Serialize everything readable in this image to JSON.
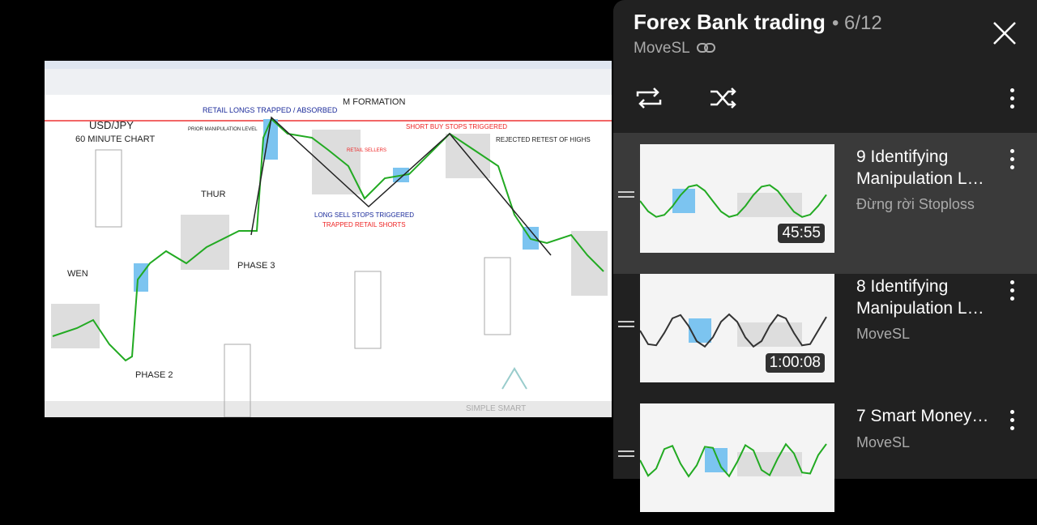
{
  "video": {
    "annotations": [
      "USD/JPY",
      "60 MINUTE CHART",
      "WEN",
      "THUR",
      "PHASE 2",
      "PHASE 3",
      "RETAIL LONGS TRAPPED / ABSORBED",
      "M FORMATION",
      "SHORT BUY STOPS TRIGGERED",
      "REJECTED RETEST OF HIGHS",
      "LONG SELL STOPS TRIGGERED",
      "TRAPPED RETAIL SHORTS",
      "PRIOR MANIPULATION LEVEL",
      "RETAIL SELLERS",
      "SIMPLE SMART"
    ]
  },
  "playlist": {
    "title": "Forex Bank trading",
    "position": "• 6/12",
    "owner": "MoveSL",
    "items": [
      {
        "title": "9 Identifying Manipulation L…",
        "channel": "Đừng rời Stoploss",
        "duration": "45:55"
      },
      {
        "title": "8 Identifying Manipulation L…",
        "channel": "MoveSL",
        "duration": "1:00:08"
      },
      {
        "title": "7 Smart Money…",
        "channel": "MoveSL"
      }
    ]
  }
}
